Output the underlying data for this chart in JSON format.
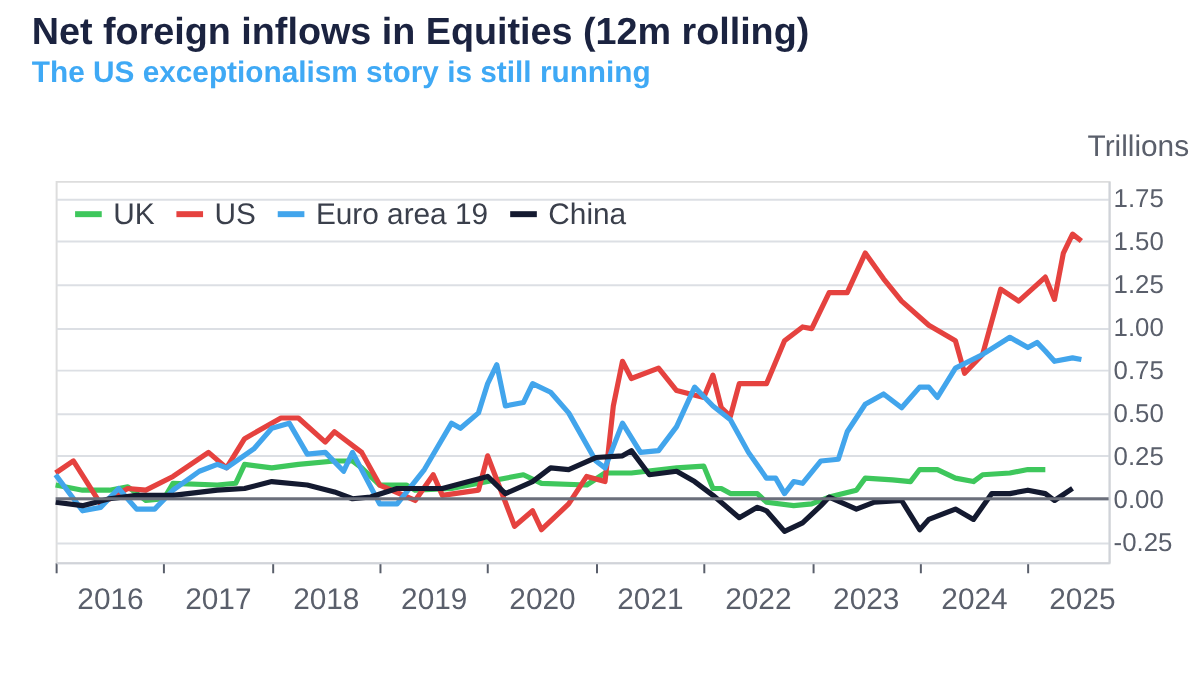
{
  "chart_data": {
    "type": "line",
    "title": "Net foreign inflows in Equities (12m rolling)",
    "subtitle": "The US exceptionalism story is still running",
    "ylabel": "Trillions",
    "xlim": [
      "2016-01",
      "2025-10"
    ],
    "xticks": [
      {
        "value": "2016-01",
        "label": null
      },
      {
        "value": "2016-07",
        "label": "2016"
      },
      {
        "value": "2017-01",
        "label": null
      },
      {
        "value": "2017-07",
        "label": "2017"
      },
      {
        "value": "2018-01",
        "label": null
      },
      {
        "value": "2018-07",
        "label": "2018"
      },
      {
        "value": "2019-01",
        "label": null
      },
      {
        "value": "2019-07",
        "label": "2019"
      },
      {
        "value": "2020-01",
        "label": null
      },
      {
        "value": "2020-07",
        "label": "2020"
      },
      {
        "value": "2021-01",
        "label": null
      },
      {
        "value": "2021-07",
        "label": "2021"
      },
      {
        "value": "2022-01",
        "label": null
      },
      {
        "value": "2022-07",
        "label": "2022"
      },
      {
        "value": "2023-01",
        "label": null
      },
      {
        "value": "2023-07",
        "label": "2023"
      },
      {
        "value": "2024-01",
        "label": null
      },
      {
        "value": "2024-07",
        "label": "2024"
      },
      {
        "value": "2025-01",
        "label": null
      },
      {
        "value": "2025-07",
        "label": "2025"
      }
    ],
    "ylim": [
      -0.37,
      1.85
    ],
    "yticks": [
      {
        "value": -0.25,
        "label": "-0.25"
      },
      {
        "value": 0,
        "label": "0.00"
      },
      {
        "value": 0.25,
        "label": "0.25"
      },
      {
        "value": 0.5,
        "label": "0.50"
      },
      {
        "value": 0.75,
        "label": "0.75"
      },
      {
        "value": 1,
        "label": "1.00"
      },
      {
        "value": 1.25,
        "label": "1.25"
      },
      {
        "value": 1.5,
        "label": "1.50"
      },
      {
        "value": 1.75,
        "label": "1.75"
      }
    ],
    "grid": "y",
    "legend": "top left",
    "line_style": "solid",
    "marker": "none",
    "ref_lines": [
      {
        "axis": "y",
        "value": 0,
        "color": "#6b6f7b"
      }
    ],
    "series": [
      {
        "name": "UK",
        "color": "#3ec75c",
        "x": [
          "2016-01",
          "2016-04",
          "2016-07",
          "2016-09",
          "2016-11",
          "2017-01",
          "2017-02",
          "2017-07",
          "2017-09",
          "2017-10",
          "2018-01",
          "2018-04",
          "2018-08",
          "2018-10",
          "2018-11",
          "2019-01",
          "2019-04",
          "2019-05",
          "2019-09",
          "2020-01",
          "2020-05",
          "2020-07",
          "2020-12",
          "2021-02",
          "2021-05",
          "2021-10",
          "2022-01",
          "2022-02",
          "2022-03",
          "2022-04",
          "2022-07",
          "2022-08",
          "2022-11",
          "2023-01",
          "2023-03",
          "2023-06",
          "2023-07",
          "2023-10",
          "2023-12",
          "2024-01",
          "2024-03",
          "2024-05",
          "2024-07",
          "2024-08",
          "2024-11",
          "2025-01",
          "2025-03"
        ],
        "values": [
          0.08,
          0.05,
          0.05,
          0.07,
          -0.01,
          0.0,
          0.09,
          0.08,
          0.09,
          0.2,
          0.18,
          0.2,
          0.22,
          0.22,
          0.18,
          0.08,
          0.08,
          0.05,
          0.06,
          0.1,
          0.14,
          0.09,
          0.08,
          0.15,
          0.15,
          0.18,
          0.19,
          0.06,
          0.06,
          0.03,
          0.03,
          -0.02,
          -0.04,
          -0.03,
          0.01,
          0.05,
          0.12,
          0.11,
          0.1,
          0.17,
          0.17,
          0.12,
          0.1,
          0.14,
          0.15,
          0.17,
          0.17
        ]
      },
      {
        "name": "US",
        "color": "#e5423f",
        "x": [
          "2016-01",
          "2016-03",
          "2016-06",
          "2016-09",
          "2016-11",
          "2017-02",
          "2017-06",
          "2017-08",
          "2017-10",
          "2018-02",
          "2018-04",
          "2018-07",
          "2018-08",
          "2018-11",
          "2019-01",
          "2019-05",
          "2019-07",
          "2019-08",
          "2019-12",
          "2020-01",
          "2020-04",
          "2020-06",
          "2020-07",
          "2020-10",
          "2020-12",
          "2021-02",
          "2021-03",
          "2021-04",
          "2021-05",
          "2021-08",
          "2021-10",
          "2022-01",
          "2022-02",
          "2022-03",
          "2022-04",
          "2022-05",
          "2022-08",
          "2022-10",
          "2022-12",
          "2023-01",
          "2023-03",
          "2023-05",
          "2023-07",
          "2023-09",
          "2023-11",
          "2024-02",
          "2024-05",
          "2024-06",
          "2024-08",
          "2024-10",
          "2024-12",
          "2025-03",
          "2025-04",
          "2025-05",
          "2025-06",
          "2025-07"
        ],
        "values": [
          0.15,
          0.22,
          -0.03,
          0.06,
          0.05,
          0.13,
          0.27,
          0.18,
          0.35,
          0.47,
          0.47,
          0.33,
          0.39,
          0.27,
          0.08,
          -0.01,
          0.14,
          0.02,
          0.05,
          0.25,
          -0.16,
          -0.07,
          -0.18,
          -0.03,
          0.13,
          0.1,
          0.54,
          0.8,
          0.7,
          0.76,
          0.63,
          0.59,
          0.72,
          0.53,
          0.48,
          0.67,
          0.67,
          0.92,
          1.0,
          0.99,
          1.2,
          1.2,
          1.43,
          1.28,
          1.15,
          1.01,
          0.92,
          0.73,
          0.84,
          1.22,
          1.15,
          1.29,
          1.16,
          1.43,
          1.54,
          1.5
        ]
      },
      {
        "name": "Euro area 19",
        "color": "#42a5ec",
        "x": [
          "2016-01",
          "2016-04",
          "2016-06",
          "2016-08",
          "2016-10",
          "2016-12",
          "2017-02",
          "2017-05",
          "2017-07",
          "2017-08",
          "2017-11",
          "2018-01",
          "2018-03",
          "2018-05",
          "2018-07",
          "2018-09",
          "2018-10",
          "2019-01",
          "2019-03",
          "2019-06",
          "2019-09",
          "2019-10",
          "2019-12",
          "2020-01",
          "2020-02",
          "2020-03",
          "2020-05",
          "2020-06",
          "2020-08",
          "2020-10",
          "2021-01",
          "2021-02",
          "2021-04",
          "2021-06",
          "2021-08",
          "2021-10",
          "2021-12",
          "2022-02",
          "2022-04",
          "2022-06",
          "2022-08",
          "2022-09",
          "2022-10",
          "2022-11",
          "2022-12",
          "2023-02",
          "2023-04",
          "2023-05",
          "2023-07",
          "2023-09",
          "2023-11",
          "2024-01",
          "2024-02",
          "2024-03",
          "2024-05",
          "2024-08",
          "2024-11",
          "2025-01",
          "2025-02",
          "2025-03",
          "2025-04",
          "2025-06",
          "2025-07"
        ],
        "values": [
          0.14,
          -0.07,
          -0.05,
          0.06,
          -0.06,
          -0.06,
          0.05,
          0.16,
          0.2,
          0.18,
          0.29,
          0.41,
          0.44,
          0.26,
          0.27,
          0.16,
          0.27,
          -0.03,
          -0.03,
          0.17,
          0.44,
          0.41,
          0.5,
          0.67,
          0.78,
          0.54,
          0.56,
          0.67,
          0.62,
          0.5,
          0.22,
          0.18,
          0.44,
          0.27,
          0.28,
          0.42,
          0.65,
          0.54,
          0.46,
          0.27,
          0.12,
          0.12,
          0.03,
          0.1,
          0.09,
          0.22,
          0.23,
          0.39,
          0.55,
          0.61,
          0.53,
          0.65,
          0.65,
          0.59,
          0.76,
          0.84,
          0.94,
          0.88,
          0.91,
          0.86,
          0.8,
          0.82,
          0.81
        ]
      },
      {
        "name": "China",
        "color": "#141a30",
        "x": [
          "2016-01",
          "2016-04",
          "2016-07",
          "2016-10",
          "2017-02",
          "2017-07",
          "2017-10",
          "2018-01",
          "2018-05",
          "2018-08",
          "2018-10",
          "2018-12",
          "2019-03",
          "2019-08",
          "2020-01",
          "2020-03",
          "2020-06",
          "2020-08",
          "2020-10",
          "2021-01",
          "2021-04",
          "2021-05",
          "2021-07",
          "2021-10",
          "2021-12",
          "2022-02",
          "2022-05",
          "2022-07",
          "2022-08",
          "2022-10",
          "2022-12",
          "2023-02",
          "2023-03",
          "2023-06",
          "2023-08",
          "2023-11",
          "2024-01",
          "2024-02",
          "2024-05",
          "2024-07",
          "2024-09",
          "2024-11",
          "2025-01",
          "2025-03",
          "2025-04",
          "2025-06"
        ],
        "values": [
          -0.02,
          -0.04,
          0.0,
          0.02,
          0.02,
          0.05,
          0.06,
          0.1,
          0.08,
          0.04,
          0.0,
          0.01,
          0.06,
          0.06,
          0.13,
          0.03,
          0.1,
          0.18,
          0.17,
          0.24,
          0.25,
          0.28,
          0.14,
          0.16,
          0.1,
          0.02,
          -0.11,
          -0.05,
          -0.07,
          -0.19,
          -0.14,
          -0.04,
          0.01,
          -0.06,
          -0.02,
          -0.01,
          -0.18,
          -0.12,
          -0.06,
          -0.12,
          0.03,
          0.03,
          0.05,
          0.03,
          -0.01,
          0.06
        ]
      }
    ]
  }
}
